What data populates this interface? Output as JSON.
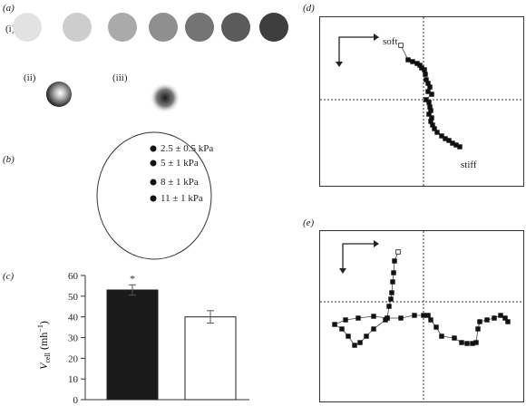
{
  "panels": {
    "a": {
      "label": "(a)",
      "sub_i": "(i)",
      "sub_ii": "(ii)",
      "sub_iii": "(iii)",
      "disc_colors": [
        "#e2e2e2",
        "#cdcdcd",
        "#aaaaaa",
        "#8f8f8f",
        "#747474",
        "#5b5b5b",
        "#3e3e3e"
      ]
    },
    "b": {
      "label": "(b)",
      "zones": [
        "2.5 ± 0.5 kPa",
        "5 ± 1 kPa",
        "8 ± 1 kPa",
        "11 ± 1 kPa"
      ]
    },
    "c": {
      "label": "(c)"
    },
    "d": {
      "label": "(d)",
      "start_label": "soft",
      "end_label": "stiff",
      "track": [
        [
          -25,
          60
        ],
        [
          -17,
          44
        ],
        [
          -12,
          42
        ],
        [
          -7,
          40
        ],
        [
          -4,
          38
        ],
        [
          -2,
          35
        ],
        [
          1,
          33
        ],
        [
          2,
          28
        ],
        [
          3,
          22
        ],
        [
          5,
          18
        ],
        [
          7,
          14
        ],
        [
          5,
          9
        ],
        [
          9,
          6
        ],
        [
          3,
          0
        ],
        [
          6,
          -3
        ],
        [
          7,
          -8
        ],
        [
          8,
          -12
        ],
        [
          6,
          -16
        ],
        [
          9,
          -20
        ],
        [
          8,
          -24
        ],
        [
          10,
          -28
        ],
        [
          12,
          -32
        ],
        [
          15,
          -36
        ],
        [
          20,
          -40
        ],
        [
          24,
          -43
        ],
        [
          28,
          -45
        ],
        [
          32,
          -48
        ],
        [
          36,
          -50
        ],
        [
          40,
          -52
        ]
      ]
    },
    "e": {
      "label": "(e)",
      "track": [
        [
          -28,
          55
        ],
        [
          -32,
          45
        ],
        [
          -33,
          32
        ],
        [
          -34,
          22
        ],
        [
          -35,
          10
        ],
        [
          -36,
          3
        ],
        [
          -38,
          -5
        ],
        [
          -40,
          -18
        ],
        [
          -42,
          -20
        ],
        [
          -55,
          -30
        ],
        [
          -63,
          -38
        ],
        [
          -70,
          -45
        ],
        [
          -76,
          -48
        ],
        [
          -83,
          -38
        ],
        [
          -90,
          -30
        ],
        [
          -98,
          -25
        ],
        [
          -86,
          -20
        ],
        [
          -72,
          -18
        ],
        [
          -55,
          -16
        ],
        [
          -40,
          -18
        ],
        [
          -25,
          -18
        ],
        [
          -10,
          -15
        ],
        [
          0,
          -15
        ],
        [
          5,
          -15
        ],
        [
          8,
          -20
        ],
        [
          14,
          -28
        ],
        [
          20,
          -38
        ],
        [
          34,
          -40
        ],
        [
          42,
          -45
        ],
        [
          48,
          -46
        ],
        [
          54,
          -46
        ],
        [
          58,
          -45
        ],
        [
          60,
          -30
        ],
        [
          62,
          -22
        ],
        [
          70,
          -20
        ],
        [
          78,
          -18
        ],
        [
          85,
          -15
        ],
        [
          90,
          -18
        ],
        [
          93,
          -22
        ]
      ]
    }
  },
  "chart_data": {
    "type": "bar",
    "categories": [
      "",
      ""
    ],
    "values": [
      53,
      40
    ],
    "errors": [
      2.5,
      3
    ],
    "colors": [
      "#1a1a1a",
      "#ffffff"
    ],
    "annotation": "*",
    "ylabel_main": "V",
    "ylabel_sub": "cell",
    "ylabel_unit": " (mh",
    "ylabel_sup": "−1",
    "ylabel_close": ")",
    "ylim": [
      0,
      60
    ],
    "yticks": [
      "0",
      "10",
      "20",
      "30",
      "40",
      "50",
      "60"
    ]
  }
}
